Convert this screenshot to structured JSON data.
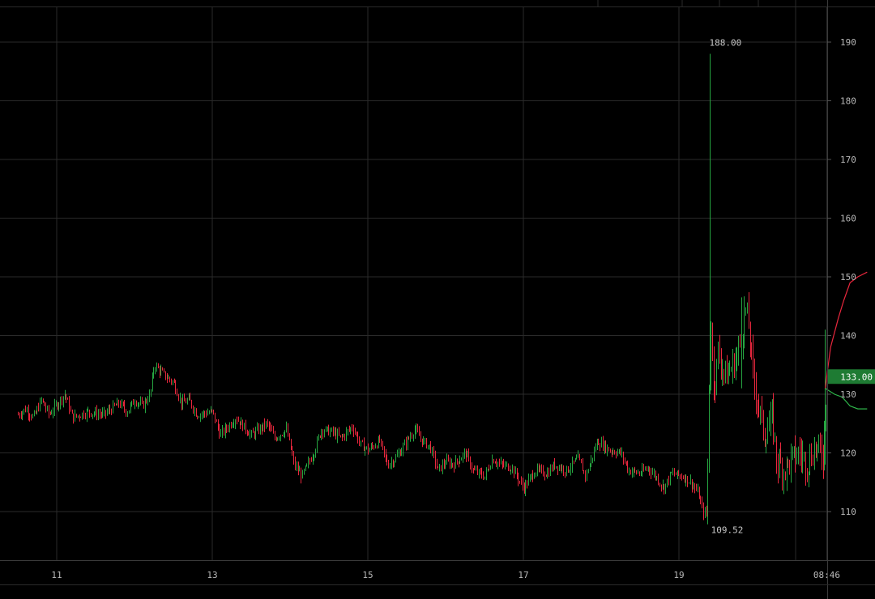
{
  "chart_data": {
    "type": "candlestick",
    "title": "",
    "xlabel": "",
    "ylabel": "",
    "ylim": [
      102,
      196
    ],
    "grid": true,
    "x_ticks": [
      {
        "label": "11",
        "t": 0.5
      },
      {
        "label": "13",
        "t": 2.5
      },
      {
        "label": "15",
        "t": 4.5
      },
      {
        "label": "17",
        "t": 6.5
      },
      {
        "label": "19",
        "t": 8.5
      },
      {
        "label": "08:46",
        "t": 10.4
      }
    ],
    "y_ticks": [
      110,
      120,
      130,
      140,
      150,
      160,
      170,
      180,
      190
    ],
    "current_price": {
      "label": "133.00",
      "value": 133.0
    },
    "high_marker": {
      "label": "188.00",
      "value": 188.0,
      "t": 9.16
    },
    "low_marker": {
      "label": "109.52",
      "value": 109.52,
      "t": 9.13
    },
    "price_path": [
      [
        0.0,
        126.5
      ],
      [
        0.1,
        127.5
      ],
      [
        0.2,
        126.0
      ],
      [
        0.3,
        129.0
      ],
      [
        0.4,
        126.5
      ],
      [
        0.6,
        130.0
      ],
      [
        0.7,
        126.0
      ],
      [
        0.9,
        127.0
      ],
      [
        1.1,
        126.5
      ],
      [
        1.3,
        128.5
      ],
      [
        1.4,
        127.0
      ],
      [
        1.5,
        129.0
      ],
      [
        1.6,
        128.0
      ],
      [
        1.7,
        130.0
      ],
      [
        1.75,
        135.0
      ],
      [
        1.9,
        133.0
      ],
      [
        2.0,
        132.0
      ],
      [
        2.1,
        128.5
      ],
      [
        2.2,
        129.0
      ],
      [
        2.3,
        126.5
      ],
      [
        2.5,
        127.0
      ],
      [
        2.6,
        123.0
      ],
      [
        2.8,
        126.0
      ],
      [
        3.0,
        123.0
      ],
      [
        3.2,
        125.0
      ],
      [
        3.3,
        122.5
      ],
      [
        3.45,
        124.0
      ],
      [
        3.55,
        118.0
      ],
      [
        3.65,
        116.0
      ],
      [
        3.8,
        120.0
      ],
      [
        3.9,
        124.0
      ],
      [
        4.05,
        123.5
      ],
      [
        4.15,
        122.5
      ],
      [
        4.3,
        124.5
      ],
      [
        4.4,
        121.5
      ],
      [
        4.5,
        120.5
      ],
      [
        4.65,
        122.0
      ],
      [
        4.75,
        118.0
      ],
      [
        4.85,
        119.0
      ],
      [
        5.0,
        122.0
      ],
      [
        5.1,
        124.0
      ],
      [
        5.2,
        122.0
      ],
      [
        5.3,
        121.0
      ],
      [
        5.4,
        117.0
      ],
      [
        5.5,
        118.5
      ],
      [
        5.6,
        118.0
      ],
      [
        5.75,
        120.0
      ],
      [
        5.85,
        117.0
      ],
      [
        6.0,
        116.0
      ],
      [
        6.1,
        119.0
      ],
      [
        6.2,
        118.0
      ],
      [
        6.35,
        117.5
      ],
      [
        6.5,
        114.0
      ],
      [
        6.65,
        117.0
      ],
      [
        6.8,
        116.5
      ],
      [
        6.9,
        118.0
      ],
      [
        7.05,
        117.0
      ],
      [
        7.2,
        119.0
      ],
      [
        7.3,
        116.0
      ],
      [
        7.45,
        122.0
      ],
      [
        7.6,
        120.5
      ],
      [
        7.75,
        120.0
      ],
      [
        7.85,
        117.0
      ],
      [
        8.0,
        116.5
      ],
      [
        8.1,
        117.5
      ],
      [
        8.2,
        116.0
      ],
      [
        8.3,
        114.0
      ],
      [
        8.4,
        116.5
      ],
      [
        8.55,
        116.0
      ],
      [
        8.65,
        115.0
      ],
      [
        8.75,
        113.0
      ],
      [
        8.8,
        110.0
      ],
      [
        8.86,
        109.6
      ],
      [
        8.9,
        143.0
      ],
      [
        8.95,
        131.0
      ],
      [
        9.0,
        137.0
      ],
      [
        9.1,
        133.0
      ],
      [
        9.2,
        135.0
      ],
      [
        9.3,
        139.0
      ],
      [
        9.35,
        145.0
      ],
      [
        9.4,
        141.0
      ],
      [
        9.45,
        133.0
      ],
      [
        9.55,
        126.0
      ],
      [
        9.6,
        123.0
      ],
      [
        9.7,
        126.0
      ],
      [
        9.75,
        119.0
      ],
      [
        9.85,
        117.0
      ],
      [
        9.95,
        119.0
      ],
      [
        10.05,
        120.0
      ],
      [
        10.15,
        118.0
      ],
      [
        10.25,
        121.0
      ],
      [
        10.35,
        119.5
      ],
      [
        10.4,
        133.0
      ]
    ],
    "spikes": [
      {
        "t": 8.9,
        "high": 188.0,
        "low": 130.0
      },
      {
        "t": 9.3,
        "high": 146.5,
        "low": 131.0
      },
      {
        "t": 10.38,
        "high": 141.0,
        "low": 118.0
      }
    ],
    "overlay_lines": [
      {
        "color": "#e8273d",
        "points": [
          [
            10.38,
            131.0
          ],
          [
            10.45,
            138.0
          ],
          [
            10.55,
            143.0
          ],
          [
            10.62,
            146.0
          ],
          [
            10.7,
            149.0
          ],
          [
            10.8,
            150.0
          ],
          [
            10.92,
            150.8
          ]
        ]
      },
      {
        "color": "#2fb84b",
        "points": [
          [
            10.38,
            131.0
          ],
          [
            10.5,
            130.0
          ],
          [
            10.6,
            129.5
          ],
          [
            10.7,
            128.0
          ],
          [
            10.8,
            127.5
          ],
          [
            10.92,
            127.5
          ]
        ]
      }
    ],
    "colors": {
      "up": "#26a641",
      "down": "#e8273d",
      "grid": "#2a2a2a",
      "price_label_bg": "#1e7b33",
      "background": "#000000"
    }
  }
}
